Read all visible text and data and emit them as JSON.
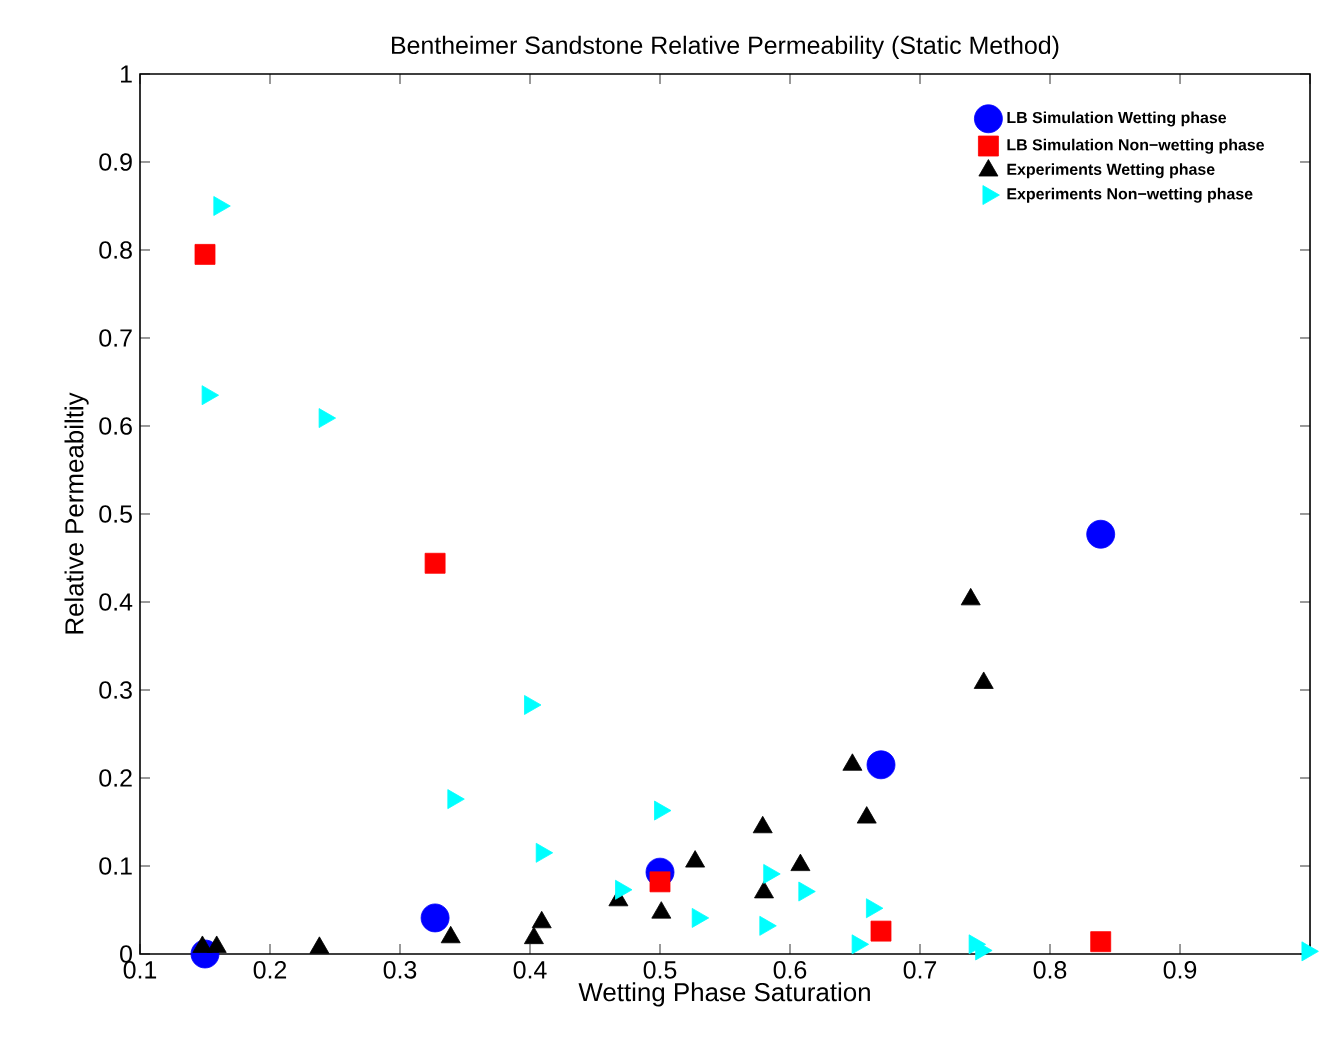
{
  "chart_data": {
    "type": "scatter",
    "title": "Bentheimer Sandstone Relative Permeability (Static Method)",
    "xlabel": "Wetting Phase Saturation",
    "ylabel": "Relative Permeabiltiy",
    "xlim": [
      0.1,
      1.0
    ],
    "ylim": [
      0,
      1
    ],
    "xticks": [
      0.1,
      0.2,
      0.3,
      0.4,
      0.5,
      0.6,
      0.7,
      0.8,
      0.9,
      {
        "value": 1.0,
        "label": null
      }
    ],
    "yticks": [
      0,
      0.1,
      0.2,
      0.3,
      0.4,
      0.5,
      0.6,
      0.7,
      0.8,
      0.9,
      1
    ],
    "legend": "top right",
    "series": [
      {
        "name": "LB Simulation Wetting phase",
        "color": "#0000ff",
        "marker": "circle",
        "x": [
          0.15,
          0.327,
          0.5,
          0.67,
          0.839
        ],
        "values": [
          0,
          0.041,
          0.093,
          0.215,
          0.477
        ]
      },
      {
        "name": "LB Simulation Non−wetting phase",
        "color": "#ff0000",
        "marker": "square",
        "x": [
          0.15,
          0.327,
          0.5,
          0.67,
          0.839
        ],
        "values": [
          0.795,
          0.444,
          0.082,
          0.026,
          0.014
        ]
      },
      {
        "name": "Experiments Wetting phase",
        "color": "#000000",
        "marker": "triangle",
        "x": [
          0.148,
          0.159,
          0.238,
          0.339,
          0.403,
          0.409,
          0.468,
          0.501,
          0.527,
          0.579,
          0.58,
          0.608,
          0.648,
          0.659,
          0.739,
          0.749
        ],
        "values": [
          0.008,
          0.008,
          0.007,
          0.019,
          0.018,
          0.036,
          0.061,
          0.047,
          0.105,
          0.144,
          0.07,
          0.101,
          0.215,
          0.155,
          0.403,
          0.308
        ]
      },
      {
        "name": "Experiments Non−wetting phase",
        "color": "#00ffff",
        "marker": "triangle-right",
        "x": [
          0.161,
          0.152,
          0.242,
          0.4,
          0.341,
          0.409,
          0.47,
          0.5,
          0.529,
          0.584,
          0.581,
          0.611,
          0.663,
          0.652,
          0.742,
          0.747,
          0.998
        ],
        "values": [
          0.85,
          0.635,
          0.609,
          0.283,
          0.176,
          0.115,
          0.073,
          0.163,
          0.041,
          0.091,
          0.032,
          0.071,
          0.052,
          0.011,
          0.011,
          0.004,
          0.003
        ]
      }
    ]
  }
}
